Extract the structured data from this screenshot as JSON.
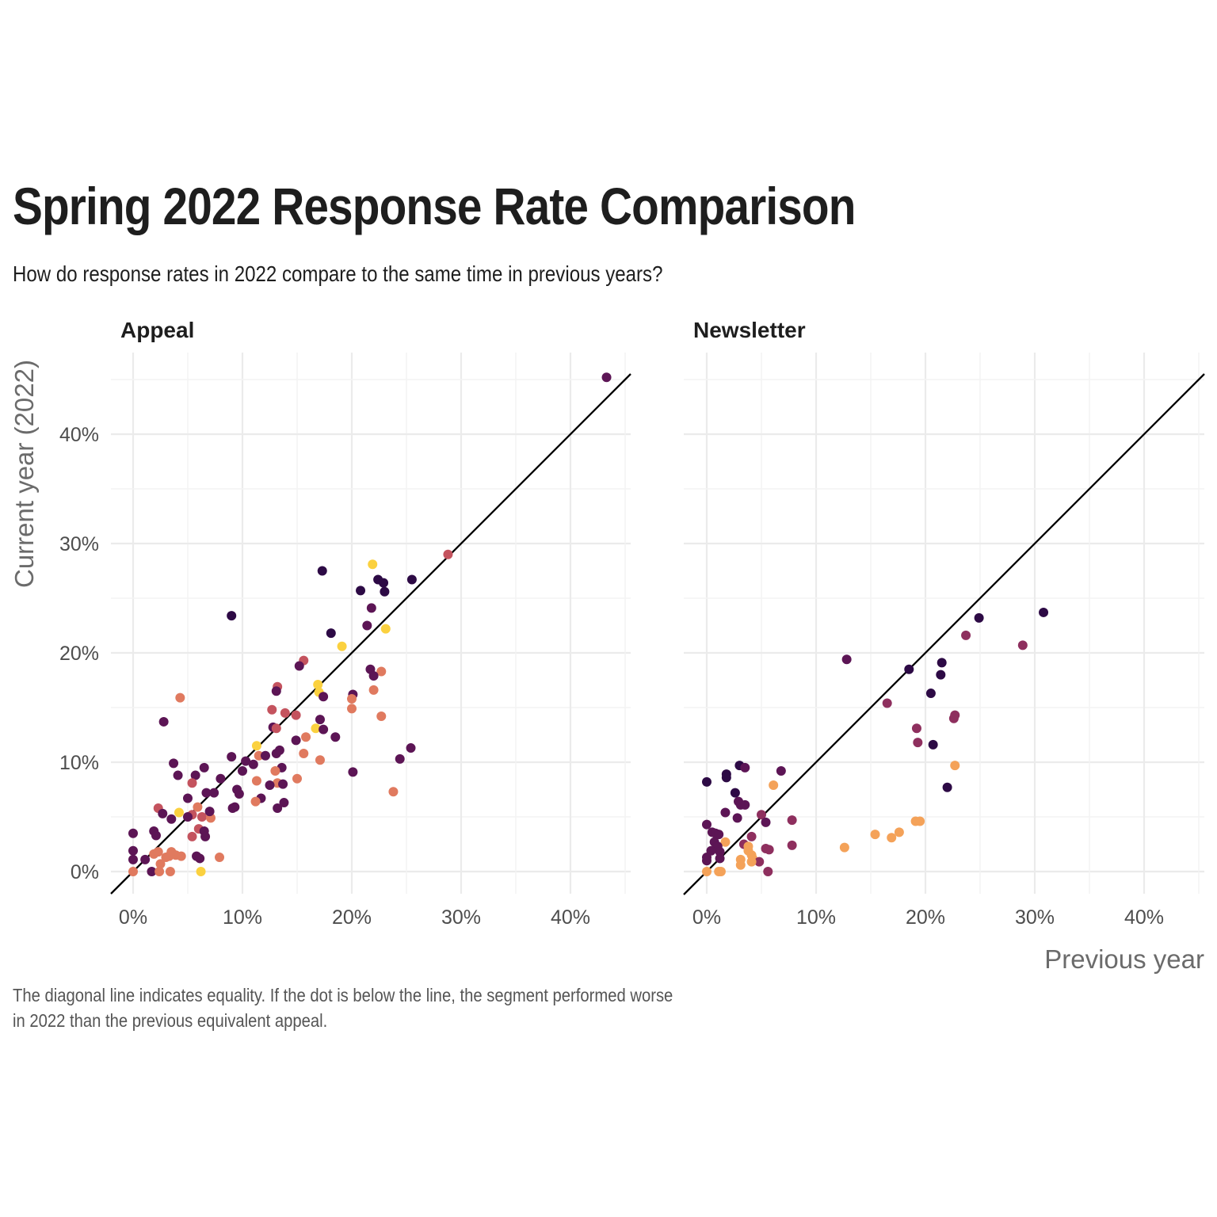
{
  "header": {
    "title": "Spring 2022 Response Rate Comparison",
    "subtitle": "How do response rates in 2022 compare to the same time in previous years?"
  },
  "caption": {
    "line1": "The diagonal line indicates equality. If the dot is below the line, the segment performed worse",
    "line2": "in 2022 than the previous equivalent appeal."
  },
  "palette": [
    "#2d0a45",
    "#5c1555",
    "#8e2f5e",
    "#c4535e",
    "#e07a5f",
    "#f4a259",
    "#fbd13f"
  ],
  "chart_data": [
    {
      "type": "scatter",
      "panel": "Appeal",
      "xlabel": "Previous year",
      "ylabel": "Current year (2022)",
      "x_ticks": [
        "0%",
        "10%",
        "20%",
        "30%",
        "40%"
      ],
      "y_ticks": [
        "0%",
        "10%",
        "20%",
        "30%",
        "40%"
      ],
      "xlim": [
        -2.2,
        45.5
      ],
      "ylim": [
        -2.2,
        47.5
      ],
      "reference_line": "y = x",
      "grid": true,
      "points": [
        [
          43.3,
          45.2,
          1
        ],
        [
          28.8,
          29.0,
          3
        ],
        [
          21.9,
          28.1,
          6
        ],
        [
          17.3,
          27.5,
          0
        ],
        [
          25.5,
          26.7,
          0
        ],
        [
          22.4,
          26.7,
          0
        ],
        [
          22.9,
          26.4,
          0
        ],
        [
          20.8,
          25.7,
          0
        ],
        [
          23.0,
          25.6,
          0
        ],
        [
          9.0,
          23.4,
          0
        ],
        [
          21.8,
          24.1,
          1
        ],
        [
          21.4,
          22.5,
          1
        ],
        [
          23.1,
          22.2,
          6
        ],
        [
          18.1,
          21.8,
          0
        ],
        [
          19.1,
          20.6,
          6
        ],
        [
          15.6,
          19.3,
          3
        ],
        [
          15.2,
          18.8,
          1
        ],
        [
          21.7,
          18.5,
          1
        ],
        [
          22.7,
          18.3,
          4
        ],
        [
          22.0,
          17.9,
          1
        ],
        [
          13.2,
          16.9,
          3
        ],
        [
          16.9,
          17.1,
          6
        ],
        [
          13.1,
          16.5,
          1
        ],
        [
          17.0,
          16.4,
          6
        ],
        [
          17.4,
          16.0,
          1
        ],
        [
          20.1,
          16.2,
          1
        ],
        [
          20.0,
          15.8,
          4
        ],
        [
          4.3,
          15.9,
          4
        ],
        [
          12.7,
          14.8,
          3
        ],
        [
          13.9,
          14.5,
          3
        ],
        [
          14.9,
          14.3,
          3
        ],
        [
          22.0,
          16.6,
          4
        ],
        [
          20.0,
          14.9,
          4
        ],
        [
          22.7,
          14.2,
          4
        ],
        [
          2.8,
          13.7,
          1
        ],
        [
          17.1,
          13.9,
          1
        ],
        [
          12.8,
          13.2,
          1
        ],
        [
          13.1,
          13.1,
          3
        ],
        [
          16.7,
          13.1,
          6
        ],
        [
          18.5,
          12.3,
          1
        ],
        [
          17.4,
          13.0,
          1
        ],
        [
          15.8,
          12.3,
          4
        ],
        [
          14.9,
          12.0,
          1
        ],
        [
          13.1,
          10.8,
          1
        ],
        [
          13.4,
          11.1,
          1
        ],
        [
          11.3,
          11.5,
          6
        ],
        [
          11.5,
          10.6,
          4
        ],
        [
          12.1,
          10.6,
          1
        ],
        [
          9.0,
          10.5,
          1
        ],
        [
          10.3,
          10.1,
          1
        ],
        [
          11.0,
          9.8,
          1
        ],
        [
          15.6,
          10.8,
          4
        ],
        [
          17.1,
          10.2,
          4
        ],
        [
          25.4,
          11.3,
          1
        ],
        [
          24.4,
          10.3,
          1
        ],
        [
          3.7,
          9.9,
          1
        ],
        [
          6.5,
          9.5,
          1
        ],
        [
          13.6,
          9.5,
          1
        ],
        [
          10.0,
          9.2,
          1
        ],
        [
          13.0,
          9.2,
          4
        ],
        [
          4.1,
          8.8,
          1
        ],
        [
          5.7,
          8.8,
          1
        ],
        [
          8.0,
          8.5,
          1
        ],
        [
          15.0,
          8.5,
          4
        ],
        [
          11.3,
          8.3,
          4
        ],
        [
          13.2,
          8.1,
          4
        ],
        [
          13.7,
          8.0,
          1
        ],
        [
          12.5,
          7.9,
          1
        ],
        [
          20.1,
          9.1,
          1
        ],
        [
          5.4,
          8.1,
          3
        ],
        [
          9.5,
          7.5,
          1
        ],
        [
          9.7,
          7.1,
          1
        ],
        [
          6.7,
          7.2,
          1
        ],
        [
          7.4,
          7.2,
          1
        ],
        [
          5.0,
          6.7,
          1
        ],
        [
          11.7,
          6.7,
          1
        ],
        [
          11.2,
          6.4,
          4
        ],
        [
          13.8,
          6.3,
          1
        ],
        [
          9.1,
          5.8,
          1
        ],
        [
          9.3,
          5.9,
          1
        ],
        [
          13.2,
          5.8,
          1
        ],
        [
          23.8,
          7.3,
          4
        ],
        [
          2.3,
          5.8,
          3
        ],
        [
          2.7,
          5.3,
          1
        ],
        [
          4.2,
          5.4,
          6
        ],
        [
          5.9,
          5.9,
          4
        ],
        [
          5.4,
          5.2,
          3
        ],
        [
          3.5,
          4.8,
          1
        ],
        [
          6.3,
          5.0,
          3
        ],
        [
          7.1,
          4.9,
          4
        ],
        [
          5.0,
          5.0,
          1
        ],
        [
          7.0,
          5.5,
          1
        ],
        [
          6.0,
          3.9,
          3
        ],
        [
          6.5,
          3.7,
          1
        ],
        [
          6.6,
          3.2,
          1
        ],
        [
          5.4,
          3.2,
          3
        ],
        [
          1.9,
          3.7,
          1
        ],
        [
          2.1,
          3.3,
          1
        ],
        [
          0.0,
          3.5,
          1
        ],
        [
          0.0,
          1.9,
          1
        ],
        [
          0.0,
          1.1,
          1
        ],
        [
          1.1,
          1.1,
          1
        ],
        [
          1.9,
          1.6,
          4
        ],
        [
          2.3,
          1.8,
          4
        ],
        [
          2.5,
          0.7,
          4
        ],
        [
          3.3,
          1.4,
          4
        ],
        [
          3.5,
          1.8,
          4
        ],
        [
          3.9,
          1.5,
          4
        ],
        [
          4.4,
          1.4,
          4
        ],
        [
          3.0,
          1.3,
          4
        ],
        [
          5.8,
          1.4,
          1
        ],
        [
          6.1,
          1.2,
          1
        ],
        [
          7.9,
          1.3,
          4
        ],
        [
          1.7,
          0.0,
          1
        ],
        [
          2.4,
          0.0,
          4
        ],
        [
          3.4,
          0.0,
          4
        ],
        [
          0.0,
          0.0,
          4
        ],
        [
          6.2,
          0.0,
          6
        ]
      ]
    },
    {
      "type": "scatter",
      "panel": "Newsletter",
      "xlabel": "Previous year",
      "ylabel": "Current year (2022)",
      "x_ticks": [
        "0%",
        "10%",
        "20%",
        "30%",
        "40%"
      ],
      "xlim": [
        -2.2,
        45.5
      ],
      "ylim": [
        -2.2,
        47.5
      ],
      "reference_line": "y = x",
      "grid": true,
      "points": [
        [
          30.8,
          23.7,
          0
        ],
        [
          24.9,
          23.2,
          0
        ],
        [
          23.7,
          21.6,
          2
        ],
        [
          28.9,
          20.7,
          2
        ],
        [
          12.8,
          19.4,
          1
        ],
        [
          18.5,
          18.5,
          0
        ],
        [
          21.5,
          19.1,
          0
        ],
        [
          21.4,
          18.0,
          0
        ],
        [
          20.5,
          16.3,
          0
        ],
        [
          16.5,
          15.4,
          2
        ],
        [
          22.7,
          14.3,
          2
        ],
        [
          22.6,
          14.0,
          2
        ],
        [
          19.2,
          13.1,
          2
        ],
        [
          19.3,
          11.8,
          2
        ],
        [
          20.7,
          11.6,
          0
        ],
        [
          22.7,
          9.7,
          5
        ],
        [
          22.0,
          7.7,
          0
        ],
        [
          0.0,
          8.2,
          0
        ],
        [
          1.8,
          8.9,
          0
        ],
        [
          1.8,
          8.6,
          0
        ],
        [
          3.0,
          9.7,
          0
        ],
        [
          3.5,
          9.5,
          1
        ],
        [
          6.8,
          9.2,
          1
        ],
        [
          6.1,
          7.9,
          5
        ],
        [
          2.6,
          7.2,
          0
        ],
        [
          2.9,
          6.4,
          1
        ],
        [
          3.1,
          6.1,
          1
        ],
        [
          3.5,
          6.1,
          1
        ],
        [
          1.7,
          5.4,
          1
        ],
        [
          2.8,
          4.9,
          1
        ],
        [
          5.0,
          5.2,
          2
        ],
        [
          5.4,
          4.5,
          1
        ],
        [
          7.8,
          4.7,
          2
        ],
        [
          0.0,
          4.3,
          1
        ],
        [
          0.5,
          3.6,
          1
        ],
        [
          0.8,
          3.5,
          1
        ],
        [
          1.1,
          3.4,
          1
        ],
        [
          4.1,
          3.2,
          2
        ],
        [
          1.7,
          2.7,
          5
        ],
        [
          3.4,
          2.5,
          2
        ],
        [
          3.8,
          2.3,
          5
        ],
        [
          3.8,
          1.9,
          5
        ],
        [
          0.7,
          2.7,
          1
        ],
        [
          1.0,
          2.3,
          1
        ],
        [
          5.4,
          2.1,
          2
        ],
        [
          5.7,
          2.0,
          2
        ],
        [
          7.8,
          2.4,
          2
        ],
        [
          0.4,
          1.9,
          1
        ],
        [
          1.2,
          1.8,
          1
        ],
        [
          4.1,
          1.5,
          5
        ],
        [
          4.2,
          1.2,
          5
        ],
        [
          3.1,
          1.1,
          5
        ],
        [
          1.2,
          1.2,
          1
        ],
        [
          0.0,
          1.0,
          1
        ],
        [
          0.0,
          1.3,
          1
        ],
        [
          4.8,
          0.9,
          2
        ],
        [
          3.1,
          0.6,
          5
        ],
        [
          4.1,
          0.9,
          5
        ],
        [
          1.1,
          0.0,
          5
        ],
        [
          1.3,
          0.0,
          5
        ],
        [
          0.0,
          0.0,
          5
        ],
        [
          5.6,
          0.0,
          2
        ],
        [
          12.6,
          2.2,
          5
        ],
        [
          15.4,
          3.4,
          5
        ],
        [
          16.9,
          3.1,
          5
        ],
        [
          17.6,
          3.6,
          5
        ],
        [
          19.1,
          4.6,
          5
        ],
        [
          19.5,
          4.6,
          5
        ]
      ]
    }
  ]
}
